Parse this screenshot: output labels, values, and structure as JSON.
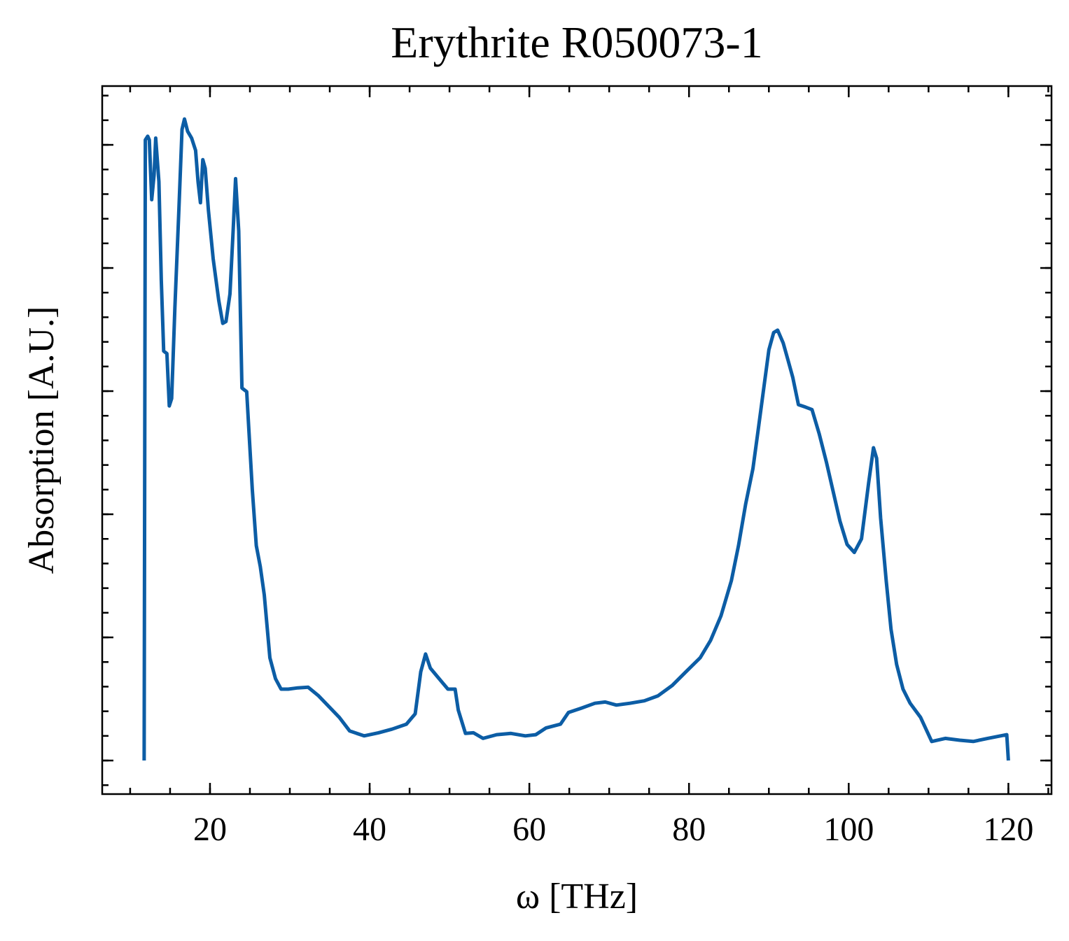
{
  "chart_data": {
    "type": "line",
    "title": "Erythrite R050073-1",
    "xlabel": "ω [THz]",
    "ylabel": "Absorption [A.U.]",
    "xlim": [
      6.5,
      125.4
    ],
    "ylim": [
      -0.0545,
      1.0955
    ],
    "xticks": [
      20,
      40,
      60,
      80,
      100,
      120
    ],
    "yticks": [
      0,
      0.2,
      0.4,
      0.6,
      0.8,
      1.0
    ],
    "show_ytick_labels": false,
    "xminor_per_major": 3,
    "yminor_per_major": 4,
    "series": [
      {
        "name": "Erythrite R050073-1",
        "color": "#0c5da5",
        "x": [
          11.75,
          11.9,
          12.2,
          12.4,
          12.7,
          13.0,
          13.2,
          13.6,
          13.9,
          14.2,
          14.6,
          14.9,
          15.2,
          15.6,
          16.1,
          16.5,
          16.8,
          17.2,
          17.7,
          18.2,
          18.5,
          18.8,
          19.1,
          19.4,
          19.8,
          20.4,
          21.1,
          21.6,
          22.0,
          22.5,
          22.9,
          23.2,
          23.6,
          24.0,
          24.6,
          24.9,
          25.3,
          25.8,
          26.3,
          26.8,
          27.5,
          28.2,
          28.9,
          29.8,
          31.0,
          32.3,
          33.6,
          34.9,
          36.2,
          37.5,
          39.3,
          41.1,
          42.8,
          44.6,
          45.7,
          46.4,
          47.0,
          47.6,
          48.5,
          49.8,
          50.7,
          51.1,
          52.0,
          53.0,
          54.2,
          55.9,
          57.7,
          59.5,
          60.8,
          62.1,
          63.9,
          64.9,
          66.5,
          68.2,
          69.5,
          70.9,
          72.6,
          74.4,
          76.1,
          77.9,
          79.6,
          81.4,
          82.7,
          84.0,
          85.3,
          86.2,
          87.1,
          88.0,
          88.6,
          89.3,
          90.0,
          90.6,
          91.1,
          91.8,
          92.4,
          93.0,
          93.7,
          94.6,
          95.4,
          96.3,
          97.2,
          98.1,
          98.9,
          99.8,
          100.7,
          101.6,
          102.5,
          103.1,
          103.5,
          104.0,
          104.7,
          105.3,
          106.0,
          106.8,
          107.7,
          109.0,
          110.4,
          112.1,
          113.9,
          115.6,
          117.4,
          119.8,
          120.0
        ],
        "values": [
          0,
          1.008,
          1.014,
          1.008,
          0.911,
          0.951,
          1.011,
          0.94,
          0.78,
          0.665,
          0.661,
          0.576,
          0.588,
          0.735,
          0.894,
          1.025,
          1.042,
          1.022,
          1.011,
          0.991,
          0.94,
          0.906,
          0.976,
          0.962,
          0.894,
          0.815,
          0.747,
          0.71,
          0.713,
          0.758,
          0.86,
          0.945,
          0.86,
          0.605,
          0.599,
          0.531,
          0.44,
          0.349,
          0.315,
          0.269,
          0.167,
          0.133,
          0.116,
          0.116,
          0.118,
          0.119,
          0.105,
          0.0875,
          0.07,
          0.048,
          0.04,
          0.045,
          0.051,
          0.059,
          0.076,
          0.144,
          0.173,
          0.15,
          0.136,
          0.116,
          0.116,
          0.082,
          0.044,
          0.045,
          0.036,
          0.042,
          0.044,
          0.04,
          0.042,
          0.053,
          0.059,
          0.078,
          0.085,
          0.093,
          0.095,
          0.09,
          0.093,
          0.097,
          0.105,
          0.122,
          0.144,
          0.167,
          0.195,
          0.235,
          0.292,
          0.349,
          0.417,
          0.474,
          0.531,
          0.599,
          0.667,
          0.695,
          0.699,
          0.678,
          0.65,
          0.622,
          0.578,
          0.574,
          0.57,
          0.531,
          0.485,
          0.434,
          0.389,
          0.351,
          0.338,
          0.36,
          0.451,
          0.508,
          0.491,
          0.394,
          0.292,
          0.213,
          0.156,
          0.116,
          0.093,
          0.07,
          0.031,
          0.036,
          0.033,
          0.031,
          0.036,
          0.042,
          0
        ]
      }
    ]
  }
}
